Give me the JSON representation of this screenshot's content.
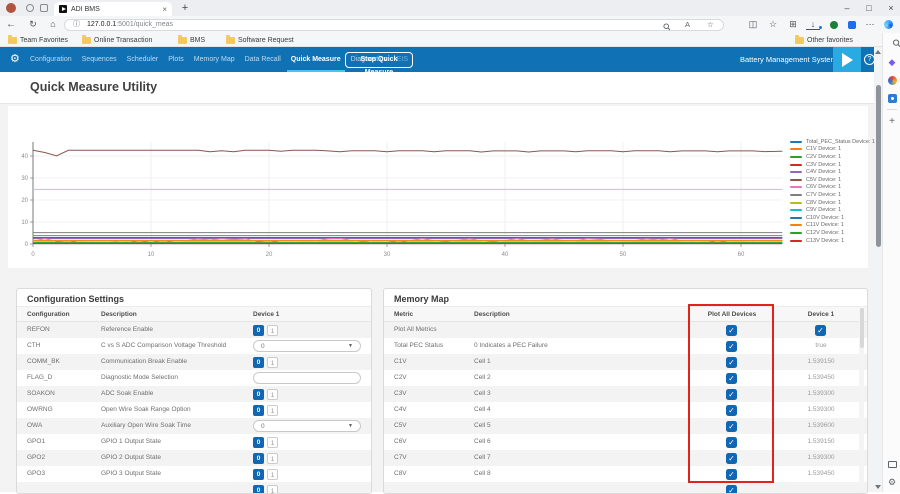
{
  "colors": {
    "nav_blue": "#1171b5",
    "logo_blue": "#2aaae2",
    "accent_cyan": "#45c6f0",
    "control_blue": "#1167b1",
    "highlight_red": "#e2231a"
  },
  "browser": {
    "tab_title": "ADI BMS",
    "url_host": "127.0.0.1",
    "url_rest": ":5001/quick_meas",
    "bookmarks": [
      "Team Favorites",
      "Online Transaction",
      "BMS",
      "Software Request"
    ],
    "other_favorites": "Other favorites"
  },
  "icons": {
    "back": "←",
    "refresh": "↻",
    "home": "⌂",
    "info": "ⓘ",
    "read_aloud": "A",
    "star": "☆",
    "split": "◫",
    "collections": "⊞",
    "downloads": "↓",
    "more": "⋯",
    "minimize": "–",
    "maximize": "□",
    "close": "×",
    "new_tab": "+",
    "tab_close": "×",
    "gear": "⚙",
    "help": "?",
    "check": "✓",
    "dropdown": "▼",
    "plus": "+"
  },
  "nav": {
    "items": [
      {
        "label": "Configuration"
      },
      {
        "label": "Sequences"
      },
      {
        "label": "Scheduler"
      },
      {
        "label": "Plots"
      },
      {
        "label": "Memory Map"
      },
      {
        "label": "Data Recall"
      },
      {
        "label": "Quick Measure",
        "active": true
      },
      {
        "label": "Diagnostics"
      },
      {
        "label": "EIS",
        "dim": true
      }
    ],
    "stop_button": "Stop Quick Measure",
    "brand": "Battery Management System"
  },
  "page": {
    "title": "Quick Measure Utility"
  },
  "chart_data": {
    "type": "line",
    "title": "",
    "xlabel": "",
    "ylabel": "",
    "xlim": [
      0,
      63.5
    ],
    "ylim": [
      -2,
      47
    ],
    "x_ticks": [
      0,
      10,
      20,
      30,
      40,
      50,
      60
    ],
    "y_ticks": [
      0,
      10,
      20,
      30,
      40
    ],
    "grid": true,
    "legend_position": "right",
    "series": [
      {
        "name": "Total_PEC_Status Device: 1",
        "color": "#1f77b4",
        "value": 3.0
      },
      {
        "name": "C1V Device: 1",
        "color": "#ff7f0e",
        "value": 1.55
      },
      {
        "name": "C2V Device: 1",
        "color": "#2ca02c",
        "value": 0.65
      },
      {
        "name": "C3V Device: 1",
        "color": "#d62728",
        "value": 1.35
      },
      {
        "name": "C4V Device: 1",
        "color": "#9467bd",
        "value": 2.5
      },
      {
        "name": "C5V Device: 1",
        "color": "#8c564b",
        "points": [
          [
            0,
            42.6
          ],
          [
            1,
            41.6
          ],
          [
            2,
            40.1
          ],
          [
            3,
            42.6
          ],
          [
            5,
            42.6
          ],
          [
            8,
            42.6
          ],
          [
            11,
            42.6
          ],
          [
            14,
            42.6
          ],
          [
            15,
            41.9
          ],
          [
            16,
            42.4
          ],
          [
            17,
            41.9
          ],
          [
            18,
            42.6
          ],
          [
            20,
            42.6
          ],
          [
            21,
            42.2
          ],
          [
            22,
            42.6
          ],
          [
            24,
            42.6
          ],
          [
            25,
            42.3
          ],
          [
            26,
            41.9
          ],
          [
            27,
            42.4
          ],
          [
            29,
            42.4
          ],
          [
            30,
            41.9
          ],
          [
            31,
            42.4
          ],
          [
            33,
            42.4
          ],
          [
            34,
            41.9
          ],
          [
            35,
            42.4
          ],
          [
            37,
            42.4
          ],
          [
            38,
            41.8
          ],
          [
            39,
            42.3
          ],
          [
            41,
            42.3
          ],
          [
            42,
            41.8
          ],
          [
            43,
            42.3
          ],
          [
            45,
            42.3
          ],
          [
            46,
            41.9
          ],
          [
            47,
            42.4
          ],
          [
            49,
            42.4
          ],
          [
            50,
            41.9
          ],
          [
            51,
            42.4
          ],
          [
            53,
            42.4
          ],
          [
            54,
            41.9
          ],
          [
            55,
            42.3
          ],
          [
            57,
            42.3
          ],
          [
            58,
            41.9
          ],
          [
            59,
            42.3
          ],
          [
            61,
            42.3
          ],
          [
            62,
            42.0
          ],
          [
            63.5,
            42.2
          ]
        ]
      },
      {
        "name": "C6V Device: 1",
        "color": "#e377c2",
        "points": [
          [
            0,
            1.3
          ],
          [
            1,
            2.5
          ],
          [
            1.5,
            1.8
          ],
          [
            2,
            1.0
          ],
          [
            3,
            0.5
          ],
          [
            4,
            1.6
          ],
          [
            5,
            1.3
          ],
          [
            6,
            1.5
          ],
          [
            7,
            1.2
          ],
          [
            8,
            1.6
          ],
          [
            9,
            0.5
          ],
          [
            10,
            1.5
          ],
          [
            11,
            0.4
          ],
          [
            12,
            1.4
          ],
          [
            13,
            1.6
          ],
          [
            14,
            2.3
          ],
          [
            15,
            1.8
          ],
          [
            16,
            2.5
          ],
          [
            17,
            2.0
          ],
          [
            18,
            2.4
          ],
          [
            19,
            1.0
          ],
          [
            20,
            0.5
          ],
          [
            21,
            1.5
          ],
          [
            22,
            1.3
          ],
          [
            23,
            1.6
          ],
          [
            24,
            1.4
          ],
          [
            25,
            2.4
          ],
          [
            26,
            2.6
          ],
          [
            27,
            1.6
          ],
          [
            28,
            1.0
          ],
          [
            29,
            1.6
          ],
          [
            30,
            1.4
          ],
          [
            31,
            0.5
          ],
          [
            32,
            1.6
          ],
          [
            33,
            2.5
          ],
          [
            34,
            1.5
          ],
          [
            35,
            1.0
          ],
          [
            36,
            1.7
          ],
          [
            37,
            2.4
          ],
          [
            38,
            1.5
          ],
          [
            39,
            1.0
          ],
          [
            40,
            1.6
          ],
          [
            41,
            2.5
          ],
          [
            42,
            1.5
          ],
          [
            43,
            1.7
          ],
          [
            44,
            2.4
          ],
          [
            45,
            1.5
          ],
          [
            46,
            1.4
          ],
          [
            47,
            2.5
          ],
          [
            48,
            2.2
          ],
          [
            49,
            1.3
          ],
          [
            50,
            1.5
          ],
          [
            51,
            1.6
          ],
          [
            52,
            2.4
          ],
          [
            53,
            1.8
          ],
          [
            54,
            2.5
          ],
          [
            55,
            1.4
          ],
          [
            56,
            1.3
          ],
          [
            57,
            1.6
          ],
          [
            58,
            0.5
          ],
          [
            59,
            1.5
          ],
          [
            60,
            1.6
          ],
          [
            61,
            1.3
          ],
          [
            62,
            1.5
          ],
          [
            63.5,
            1.6
          ]
        ]
      },
      {
        "name": "C7V Device: 1",
        "color": "#7f7f7f",
        "value": 5.2
      },
      {
        "name": "C8V Device: 1",
        "color": "#bcbd22",
        "value": 1.75
      },
      {
        "name": "C9V Device: 1",
        "color": "#17becf",
        "value": 3.85
      },
      {
        "name": "C10V Device: 1",
        "color": "#1f77b4",
        "value": 2.95
      },
      {
        "name": "C11V Device: 1",
        "color": "#ff7f0e",
        "value": 1.5
      },
      {
        "name": "C12V Device: 1",
        "color": "#2ca02c",
        "value": 0.55
      },
      {
        "name": "C13V Device: 1",
        "color": "#d62728",
        "value": 0.2
      },
      {
        "name": "",
        "color": "#f7a6d8",
        "value": 24.8
      }
    ]
  },
  "config_panel": {
    "title": "Configuration Settings",
    "headers": [
      "Configuration",
      "Description",
      "Device 1"
    ],
    "toggle_options": [
      "0",
      "1"
    ],
    "rows": [
      {
        "name": "REFON",
        "desc": "Reference Enable",
        "control": "toggle",
        "value": "0"
      },
      {
        "name": "CTH",
        "desc": "C vs S ADC Comparison Voltage Threshold",
        "control": "select",
        "value": "0"
      },
      {
        "name": "COMM_BK",
        "desc": "Communication Break Enable",
        "control": "toggle",
        "value": "0"
      },
      {
        "name": "FLAG_D",
        "desc": "Diagnostic Mode Selection",
        "control": "text",
        "value": ""
      },
      {
        "name": "SOAKON",
        "desc": "ADC Soak Enable",
        "control": "toggle",
        "value": "0"
      },
      {
        "name": "OWRNG",
        "desc": "Open Wire Soak Range Option",
        "control": "toggle",
        "value": "0"
      },
      {
        "name": "OWA",
        "desc": "Auxiliary Open Wire Soak Time",
        "control": "select",
        "value": "0"
      },
      {
        "name": "GPO1",
        "desc": "GPIO 1 Output State",
        "control": "toggle",
        "value": "0"
      },
      {
        "name": "GPO2",
        "desc": "GPIO 2 Output State",
        "control": "toggle",
        "value": "0"
      },
      {
        "name": "GPO3",
        "desc": "GPIO 3 Output State",
        "control": "toggle",
        "value": "0"
      },
      {
        "name": "",
        "desc": "",
        "control": "toggle",
        "value": "0"
      }
    ]
  },
  "memory_panel": {
    "title": "Memory Map",
    "headers": [
      "Metric",
      "Description",
      "Plot All Devices",
      "Device 1"
    ],
    "rows": [
      {
        "metric": "Plot All Metrics",
        "desc": "",
        "plot_all": true,
        "device1": {
          "type": "checkbox",
          "checked": true
        }
      },
      {
        "metric": "Total PEC Status",
        "desc": "0 Indicates a PEC Failure",
        "plot_all": true,
        "device1": {
          "type": "text",
          "value": "true"
        }
      },
      {
        "metric": "C1V",
        "desc": "Cell 1",
        "plot_all": true,
        "device1": {
          "type": "text",
          "value": "1.539150"
        }
      },
      {
        "metric": "C2V",
        "desc": "Cell 2",
        "plot_all": true,
        "device1": {
          "type": "text",
          "value": "1.539450"
        }
      },
      {
        "metric": "C3V",
        "desc": "Cell 3",
        "plot_all": true,
        "device1": {
          "type": "text",
          "value": "1.539300"
        }
      },
      {
        "metric": "C4V",
        "desc": "Cell 4",
        "plot_all": true,
        "device1": {
          "type": "text",
          "value": "1.539300"
        }
      },
      {
        "metric": "C5V",
        "desc": "Cell 5",
        "plot_all": true,
        "device1": {
          "type": "text",
          "value": "1.539600"
        }
      },
      {
        "metric": "C6V",
        "desc": "Cell 6",
        "plot_all": true,
        "device1": {
          "type": "text",
          "value": "1.539150"
        }
      },
      {
        "metric": "C7V",
        "desc": "Cell 7",
        "plot_all": true,
        "device1": {
          "type": "text",
          "value": "1.539300"
        }
      },
      {
        "metric": "C8V",
        "desc": "Cell 8",
        "plot_all": true,
        "device1": {
          "type": "text",
          "value": "1.539450"
        }
      },
      {
        "metric": "",
        "desc": "",
        "plot_all": true,
        "device1": null
      }
    ]
  }
}
